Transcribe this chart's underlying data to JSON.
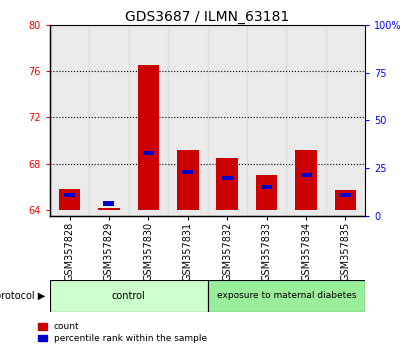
{
  "title": "GDS3687 / ILMN_63181",
  "samples": [
    "GSM357828",
    "GSM357829",
    "GSM357830",
    "GSM357831",
    "GSM357832",
    "GSM357833",
    "GSM357834",
    "GSM357835"
  ],
  "red_values": [
    65.8,
    64.2,
    76.5,
    69.2,
    68.5,
    67.0,
    69.2,
    65.7
  ],
  "blue_values": [
    0.35,
    0.45,
    0.35,
    0.35,
    0.35,
    0.35,
    0.35,
    0.35
  ],
  "blue_positions": [
    65.15,
    64.35,
    68.75,
    67.1,
    66.6,
    65.85,
    66.85,
    65.1
  ],
  "ylim_left": [
    63.5,
    80
  ],
  "yticks_left": [
    64,
    68,
    72,
    76,
    80
  ],
  "ylim_right": [
    0,
    100
  ],
  "yticks_right": [
    0,
    25,
    50,
    75,
    100
  ],
  "ytick_labels_right": [
    "0",
    "25",
    "50",
    "75",
    "100%"
  ],
  "control_samples": 4,
  "exposure_samples": 4,
  "control_label": "control",
  "exposure_label": "exposure to maternal diabetes",
  "protocol_label": "protocol",
  "legend_red": "count",
  "legend_blue": "percentile rank within the sample",
  "control_color": "#ccffcc",
  "exposure_color": "#99ee99",
  "bar_bg_color": "#dddddd",
  "bar_width": 0.55,
  "blue_bar_width": 0.28,
  "red_color": "#cc0000",
  "blue_color": "#0000cc",
  "baseline": 64.0,
  "title_fontsize": 10,
  "tick_fontsize": 7,
  "label_fontsize": 7
}
